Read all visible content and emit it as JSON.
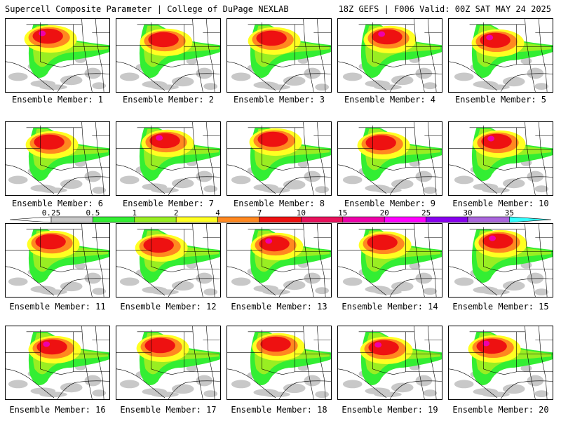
{
  "header": {
    "left": "Supercell Composite Parameter | College of DuPage NEXLAB",
    "right": "18Z GEFS | F006 Valid: 00Z SAT MAY 24 2025"
  },
  "panels": [
    "Ensemble Member: 1",
    "Ensemble Member: 2",
    "Ensemble Member: 3",
    "Ensemble Member: 4",
    "Ensemble Member: 5",
    "Ensemble Member: 6",
    "Ensemble Member: 7",
    "Ensemble Member: 8",
    "Ensemble Member: 9",
    "Ensemble Member: 10",
    "Ensemble Member: 11",
    "Ensemble Member: 12",
    "Ensemble Member: 13",
    "Ensemble Member: 14",
    "Ensemble Member: 15",
    "Ensemble Member: 16",
    "Ensemble Member: 17",
    "Ensemble Member: 18",
    "Ensemble Member: 19",
    "Ensemble Member: 20"
  ],
  "colorbar": {
    "ticks": [
      "0.25",
      "0.5",
      "1",
      "2",
      "4",
      "7",
      "10",
      "15",
      "20",
      "25",
      "30",
      "35"
    ],
    "colors": [
      "#c8c8c8",
      "#33ee33",
      "#99ee22",
      "#ffff22",
      "#ff8820",
      "#ee1111",
      "#e8115c",
      "#ee00aa",
      "#ff00ff",
      "#8800ee",
      "#aa66dd",
      "#33ffff"
    ]
  }
}
